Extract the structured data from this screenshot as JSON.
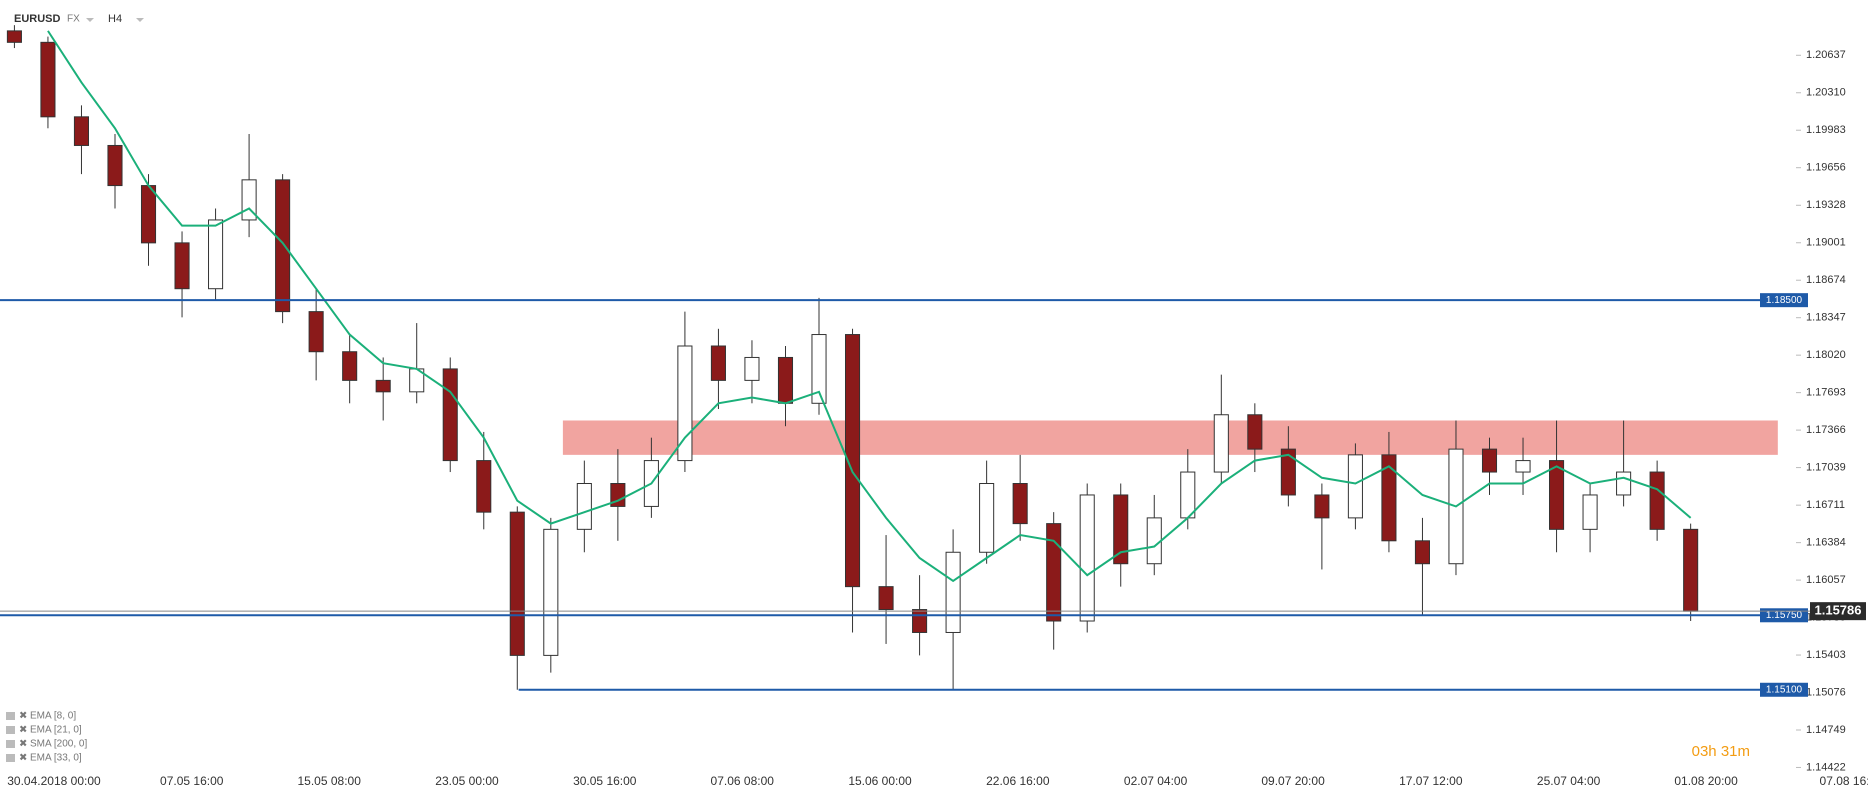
{
  "header": {
    "symbol": "EURUSD",
    "market": "FX",
    "interval": "H4"
  },
  "indicators": [
    "EMA [8, 0]",
    "EMA [21, 0]",
    "SMA [200, 0]",
    "EMA [33, 0]"
  ],
  "timer": "03h 31m",
  "chart_data": {
    "type": "candlestick",
    "up_color": "#ffffff",
    "down_color": "#8b1a1a",
    "wick_color": "#333333",
    "xlim": [
      -0.43,
      55.29
    ],
    "ylim": [
      1.1433,
      1.2091
    ],
    "xticks": [
      {
        "value": 1.18,
        "label": "30.04.2018  00:00"
      },
      {
        "value": 5.29,
        "label": "07.05 16:00"
      },
      {
        "value": 9.39,
        "label": "15.05 08:00"
      },
      {
        "value": 13.5,
        "label": "23.05 00:00"
      },
      {
        "value": 17.61,
        "label": "30.05 16:00"
      },
      {
        "value": 21.71,
        "label": "07.06 08:00"
      },
      {
        "value": 25.82,
        "label": "15.06 00:00"
      },
      {
        "value": 29.93,
        "label": "22.06 16:00"
      },
      {
        "value": 34.04,
        "label": "02.07 04:00"
      },
      {
        "value": 38.14,
        "label": "09.07 20:00"
      },
      {
        "value": 42.25,
        "label": "17.07 12:00"
      },
      {
        "value": 46.36,
        "label": "25.07 04:00"
      },
      {
        "value": 50.46,
        "label": "01.08 20:00"
      },
      {
        "value": 54.79,
        "label": "07.08 16:00"
      }
    ],
    "yticks": [
      1.20637,
      {
        "value": 1.2031,
        "label": "1.20310"
      },
      1.19983,
      1.19656,
      1.19328,
      1.19001,
      1.18674,
      1.18347,
      {
        "value": 1.1802,
        "label": "1.18020"
      },
      1.17693,
      1.17366,
      1.17039,
      1.16711,
      1.16384,
      1.16057,
      {
        "value": 1.1573,
        "label": "1.15730"
      },
      1.15403,
      1.15076,
      1.14749,
      1.14422
    ],
    "x": [
      0,
      1,
      2,
      3,
      4,
      5,
      6,
      7,
      8,
      9,
      10,
      11,
      12,
      13,
      14,
      15,
      16,
      17,
      18,
      19,
      20,
      21,
      22,
      23,
      24,
      25,
      26,
      27,
      28,
      29,
      30,
      31,
      32,
      33,
      34,
      35,
      36,
      37,
      38,
      39,
      40,
      41,
      42,
      43,
      44,
      45,
      46,
      47,
      48,
      49,
      50
    ],
    "open": [
      1.2085,
      1.2075,
      1.201,
      1.1985,
      1.195,
      1.19,
      1.186,
      1.192,
      1.1955,
      1.184,
      1.1805,
      1.178,
      1.177,
      1.179,
      1.171,
      1.1665,
      1.154,
      1.165,
      1.169,
      1.167,
      1.171,
      1.181,
      1.178,
      1.18,
      1.176,
      1.182,
      1.16,
      1.158,
      1.156,
      1.163,
      1.169,
      1.1655,
      1.157,
      1.168,
      1.162,
      1.166,
      1.17,
      1.175,
      1.172,
      1.168,
      1.166,
      1.1715,
      1.164,
      1.162,
      1.172,
      1.17,
      1.171,
      1.165,
      1.168,
      1.17,
      1.165
    ],
    "high": [
      1.209,
      1.208,
      1.202,
      1.1995,
      1.196,
      1.191,
      1.193,
      1.1995,
      1.196,
      1.186,
      1.182,
      1.18,
      1.183,
      1.18,
      1.1735,
      1.167,
      1.166,
      1.171,
      1.172,
      1.173,
      1.184,
      1.1825,
      1.1815,
      1.181,
      1.1852,
      1.1825,
      1.1645,
      1.161,
      1.165,
      1.171,
      1.1715,
      1.1665,
      1.169,
      1.169,
      1.168,
      1.172,
      1.1785,
      1.176,
      1.174,
      1.169,
      1.1725,
      1.1735,
      1.166,
      1.1745,
      1.173,
      1.173,
      1.1745,
      1.169,
      1.1745,
      1.171,
      1.1655
    ],
    "low": [
      1.207,
      1.2,
      1.196,
      1.193,
      1.188,
      1.1835,
      1.185,
      1.1905,
      1.183,
      1.178,
      1.176,
      1.1745,
      1.176,
      1.17,
      1.165,
      1.151,
      1.1525,
      1.163,
      1.164,
      1.166,
      1.17,
      1.1755,
      1.176,
      1.174,
      1.175,
      1.156,
      1.155,
      1.154,
      1.151,
      1.162,
      1.164,
      1.1545,
      1.156,
      1.16,
      1.161,
      1.165,
      1.169,
      1.17,
      1.167,
      1.1615,
      1.165,
      1.163,
      1.1575,
      1.161,
      1.168,
      1.168,
      1.163,
      1.163,
      1.167,
      1.164,
      1.157
    ],
    "close": [
      1.2075,
      1.201,
      1.1985,
      1.195,
      1.19,
      1.186,
      1.192,
      1.1955,
      1.184,
      1.1805,
      1.178,
      1.177,
      1.179,
      1.171,
      1.1665,
      1.154,
      1.165,
      1.169,
      1.167,
      1.171,
      1.181,
      1.178,
      1.18,
      1.176,
      1.182,
      1.16,
      1.158,
      1.156,
      1.163,
      1.169,
      1.1655,
      1.157,
      1.168,
      1.162,
      1.166,
      1.17,
      1.175,
      1.172,
      1.168,
      1.166,
      1.1715,
      1.164,
      1.162,
      1.172,
      1.17,
      1.171,
      1.165,
      1.168,
      1.17,
      1.165,
      1.15786
    ],
    "ema": {
      "color": "#1bb07a",
      "values": [
        null,
        1.2085,
        1.204,
        1.2,
        1.195,
        1.1915,
        1.1915,
        1.193,
        1.19,
        1.186,
        1.182,
        1.1795,
        1.179,
        1.177,
        1.173,
        1.1675,
        1.1655,
        1.1665,
        1.1675,
        1.169,
        1.173,
        1.176,
        1.1765,
        1.176,
        1.177,
        1.17,
        1.166,
        1.1625,
        1.1605,
        1.1625,
        1.1645,
        1.164,
        1.161,
        1.163,
        1.1635,
        1.166,
        1.169,
        1.171,
        1.1715,
        1.1695,
        1.169,
        1.1705,
        1.168,
        1.167,
        1.169,
        1.169,
        1.1705,
        1.169,
        1.1695,
        1.1685,
        1.166
      ]
    },
    "levels": [
      {
        "value": 1.185,
        "label": "1.18500",
        "start": -0.43
      },
      {
        "value": 1.1575,
        "label": "1.15750",
        "start": -0.43
      },
      {
        "value": 1.151,
        "label": "1.15100",
        "start": 15.04
      }
    ],
    "level_color": "#1e5aa8",
    "zone": {
      "low": 1.1715,
      "high": 1.1745,
      "start": 16.36,
      "end": 52.6,
      "color": "#ef9a96"
    },
    "last_price": 1.15786
  }
}
